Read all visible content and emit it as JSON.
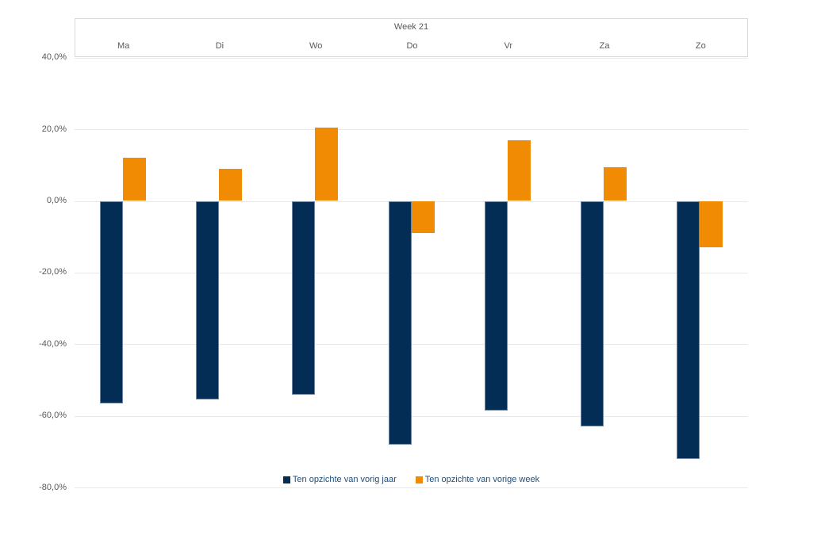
{
  "window": {
    "background": "#ffffff"
  },
  "header": {
    "title": "Week 21"
  },
  "chart_data": {
    "type": "bar",
    "title": "Week 21",
    "categories": [
      "Ma",
      "Di",
      "Wo",
      "Do",
      "Vr",
      "Za",
      "Zo"
    ],
    "series": [
      {
        "name": "Ten opzichte van vorig jaar",
        "color": "#032d55",
        "values": [
          -56.5,
          -55.5,
          -54.0,
          -68.0,
          -58.5,
          -63.0,
          -72.0
        ]
      },
      {
        "name": "Ten opzichte van vorige week",
        "color": "#f18b04",
        "values": [
          12.0,
          9.0,
          20.5,
          -9.0,
          17.0,
          9.5,
          -13.0
        ]
      }
    ],
    "xlabel": "",
    "ylabel": "",
    "ylim": [
      -80,
      40
    ],
    "yticks": [
      40,
      20,
      0,
      -20,
      -40,
      -60,
      -80
    ],
    "ytick_labels": [
      "40,0%",
      "20,0%",
      "0,0%",
      "-20,0%",
      "-40,0%",
      "-60,0%",
      "-80,0%"
    ],
    "value_format": "percent-comma-decimal",
    "grid": true,
    "legend_position": "bottom-center"
  },
  "colors": {
    "series_year": "#032d55",
    "series_week": "#f18b04",
    "gridline": "#e9e9e9",
    "header_border": "#d9d9d9",
    "axis_text": "#595959",
    "legend_text": "#1f4e79"
  }
}
